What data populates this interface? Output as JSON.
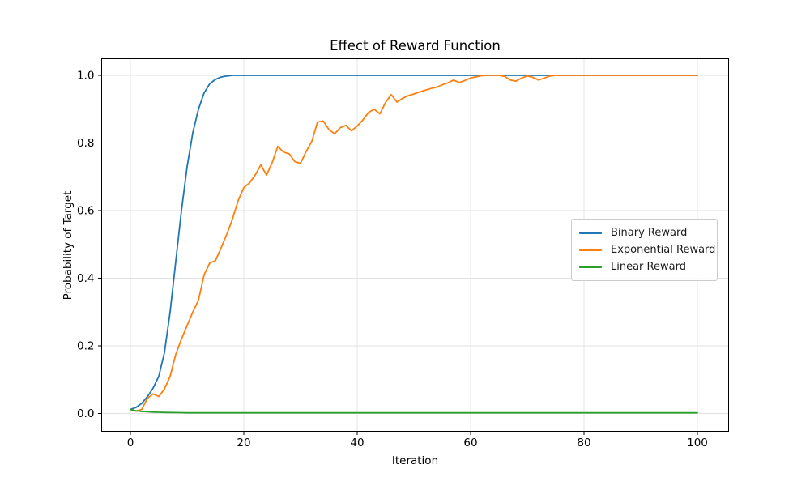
{
  "chart_data": {
    "type": "line",
    "title": "Effect of Reward Function",
    "xlabel": "Iteration",
    "ylabel": "Probability of Target",
    "x_start": 0,
    "x_step": 1,
    "x_range": [
      0,
      100
    ],
    "xlim": [
      -5,
      105
    ],
    "ylim": [
      -0.052,
      1.052
    ],
    "grid": true,
    "legend_position": "center-right",
    "x_ticks": [
      0,
      20,
      40,
      60,
      80,
      100
    ],
    "x_tick_labels": [
      "0",
      "20",
      "40",
      "60",
      "80",
      "100"
    ],
    "y_ticks": [
      0.0,
      0.2,
      0.4,
      0.6,
      0.8,
      1.0
    ],
    "y_tick_labels": [
      "0.0",
      "0.2",
      "0.4",
      "0.6",
      "0.8",
      "1.0"
    ],
    "colors": {
      "grid": "#e2e2e2",
      "spine": "#000000",
      "tick_text": "#000000"
    },
    "series": [
      {
        "name": "Binary Reward",
        "color": "#1f77b4",
        "values": [
          0.012,
          0.018,
          0.03,
          0.05,
          0.075,
          0.11,
          0.18,
          0.3,
          0.45,
          0.6,
          0.73,
          0.83,
          0.9,
          0.948,
          0.975,
          0.988,
          0.995,
          0.998,
          1.0,
          1.0,
          1.0,
          1.0,
          1.0,
          1.0,
          1.0,
          1.0,
          1.0,
          1.0,
          1.0,
          1.0,
          1.0,
          1.0,
          1.0,
          1.0,
          1.0,
          1.0,
          1.0,
          1.0,
          1.0,
          1.0,
          1.0,
          1.0,
          1.0,
          1.0,
          1.0,
          1.0,
          1.0,
          1.0,
          1.0,
          1.0,
          1.0,
          1.0,
          1.0,
          1.0,
          1.0,
          1.0,
          1.0,
          1.0,
          1.0,
          1.0,
          1.0,
          1.0,
          1.0,
          1.0,
          1.0,
          1.0,
          1.0,
          1.0,
          1.0,
          1.0,
          1.0,
          1.0,
          1.0,
          1.0,
          1.0,
          1.0,
          1.0,
          1.0,
          1.0,
          1.0,
          1.0,
          1.0,
          1.0,
          1.0,
          1.0,
          1.0,
          1.0,
          1.0,
          1.0,
          1.0,
          1.0,
          1.0,
          1.0,
          1.0,
          1.0,
          1.0,
          1.0,
          1.0,
          1.0,
          1.0,
          1.0
        ]
      },
      {
        "name": "Exponential Reward",
        "color": "#ff7f0e",
        "values": [
          0.012,
          0.007,
          0.012,
          0.045,
          0.058,
          0.05,
          0.072,
          0.11,
          0.175,
          0.22,
          0.26,
          0.3,
          0.335,
          0.41,
          0.445,
          0.452,
          0.49,
          0.53,
          0.575,
          0.63,
          0.668,
          0.682,
          0.705,
          0.735,
          0.705,
          0.742,
          0.79,
          0.773,
          0.768,
          0.745,
          0.74,
          0.775,
          0.805,
          0.862,
          0.865,
          0.84,
          0.827,
          0.845,
          0.852,
          0.836,
          0.85,
          0.868,
          0.89,
          0.9,
          0.886,
          0.92,
          0.943,
          0.921,
          0.932,
          0.94,
          0.945,
          0.951,
          0.956,
          0.961,
          0.965,
          0.972,
          0.978,
          0.986,
          0.979,
          0.985,
          0.992,
          0.996,
          0.999,
          1.0,
          1.0,
          1.0,
          0.997,
          0.986,
          0.983,
          0.992,
          0.998,
          0.994,
          0.986,
          0.992,
          0.998,
          1.0,
          1.0,
          1.0,
          1.0,
          1.0,
          1.0,
          1.0,
          1.0,
          1.0,
          1.0,
          1.0,
          1.0,
          1.0,
          1.0,
          1.0,
          1.0,
          1.0,
          1.0,
          1.0,
          1.0,
          1.0,
          1.0,
          1.0,
          1.0,
          1.0,
          1.0
        ]
      },
      {
        "name": "Linear Reward",
        "color": "#2ca02c",
        "values": [
          0.012,
          0.008,
          0.006,
          0.005,
          0.004,
          0.0035,
          0.003,
          0.0028,
          0.0026,
          0.0024,
          0.002,
          0.002,
          0.002,
          0.002,
          0.002,
          0.002,
          0.002,
          0.002,
          0.002,
          0.002,
          0.002,
          0.002,
          0.002,
          0.002,
          0.002,
          0.002,
          0.002,
          0.002,
          0.002,
          0.002,
          0.002,
          0.002,
          0.002,
          0.002,
          0.002,
          0.002,
          0.002,
          0.002,
          0.002,
          0.002,
          0.002,
          0.002,
          0.002,
          0.002,
          0.002,
          0.002,
          0.002,
          0.002,
          0.002,
          0.002,
          0.002,
          0.002,
          0.002,
          0.002,
          0.002,
          0.002,
          0.002,
          0.002,
          0.002,
          0.002,
          0.002,
          0.002,
          0.002,
          0.002,
          0.002,
          0.002,
          0.002,
          0.002,
          0.002,
          0.002,
          0.002,
          0.002,
          0.002,
          0.002,
          0.002,
          0.002,
          0.002,
          0.002,
          0.002,
          0.002,
          0.002,
          0.002,
          0.002,
          0.002,
          0.002,
          0.002,
          0.002,
          0.002,
          0.002,
          0.002,
          0.002,
          0.002,
          0.002,
          0.002,
          0.002,
          0.002,
          0.002,
          0.002,
          0.002,
          0.002,
          0.002
        ]
      }
    ]
  }
}
